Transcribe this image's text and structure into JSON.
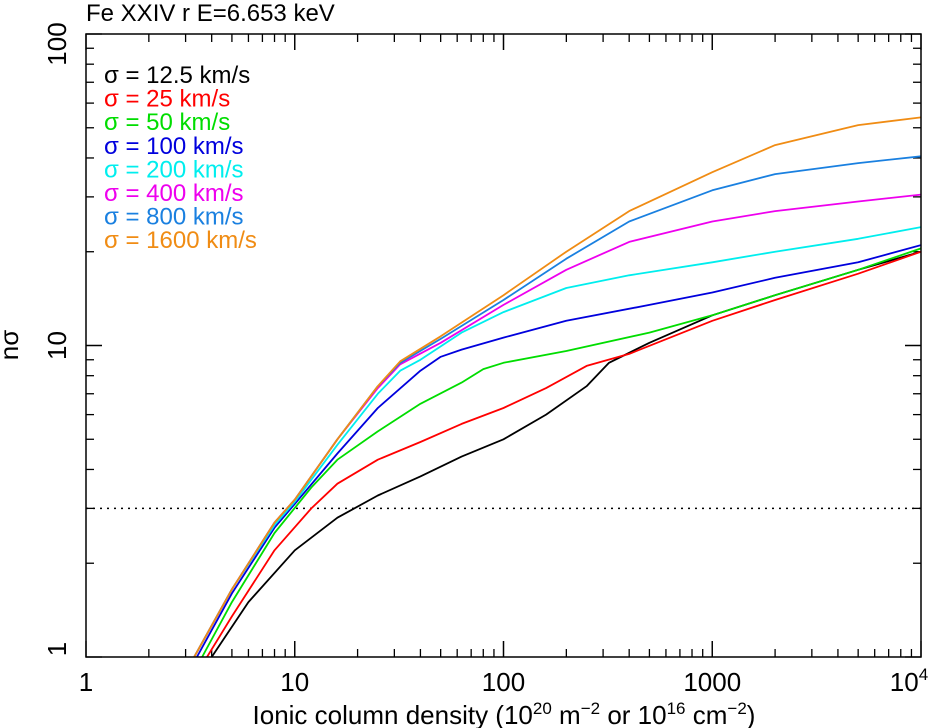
{
  "chart_data": {
    "type": "line",
    "title": "Fe XXIV r E=6.653 keV",
    "xlabel_parts": [
      "Ionic column density (10",
      "20",
      " m",
      "−2",
      " or 10",
      "16",
      " cm",
      "−2",
      ")"
    ],
    "ylabel": "nσ",
    "x_scale": "log",
    "y_scale": "log",
    "xlim": [
      1,
      10000
    ],
    "ylim": [
      1,
      100
    ],
    "x_tick_labels": [
      {
        "value": 1,
        "label": "1"
      },
      {
        "value": 10,
        "label": "10"
      },
      {
        "value": 100,
        "label": "100"
      },
      {
        "value": 1000,
        "label": "1000"
      },
      {
        "value": 10000,
        "base": "10",
        "exp": "4"
      }
    ],
    "y_tick_labels": [
      {
        "value": 1,
        "label": "1"
      },
      {
        "value": 10,
        "label": "10"
      },
      {
        "value": 100,
        "label": "100"
      }
    ],
    "reference_line": {
      "y": 3,
      "style": "dotted"
    },
    "legend_position": "top-left",
    "series": [
      {
        "name": "σ = 12.5 km/s",
        "color": "#000000",
        "points": [
          [
            4,
            1
          ],
          [
            6,
            1.5
          ],
          [
            10,
            2.2
          ],
          [
            16,
            2.8
          ],
          [
            25,
            3.3
          ],
          [
            40,
            3.8
          ],
          [
            63,
            4.4
          ],
          [
            100,
            5.0
          ],
          [
            160,
            6.0
          ],
          [
            250,
            7.4
          ],
          [
            320,
            8.8
          ],
          [
            500,
            10.2
          ],
          [
            1000,
            12.5
          ],
          [
            2000,
            14.5
          ],
          [
            5000,
            17.5
          ],
          [
            10000,
            20.0
          ]
        ]
      },
      {
        "name": "σ = 25 km/s",
        "color": "#ff0000",
        "points": [
          [
            3.8,
            1
          ],
          [
            5,
            1.35
          ],
          [
            8,
            2.2
          ],
          [
            12,
            3.0
          ],
          [
            16,
            3.6
          ],
          [
            25,
            4.3
          ],
          [
            40,
            4.9
          ],
          [
            63,
            5.6
          ],
          [
            100,
            6.3
          ],
          [
            160,
            7.3
          ],
          [
            250,
            8.6
          ],
          [
            400,
            9.4
          ],
          [
            1000,
            12.0
          ],
          [
            2000,
            14.0
          ],
          [
            5000,
            17.0
          ],
          [
            10000,
            20.0
          ]
        ]
      },
      {
        "name": "σ = 50 km/s",
        "color": "#00dd00",
        "points": [
          [
            3.6,
            1
          ],
          [
            5,
            1.5
          ],
          [
            8,
            2.5
          ],
          [
            12,
            3.5
          ],
          [
            16,
            4.3
          ],
          [
            25,
            5.3
          ],
          [
            40,
            6.5
          ],
          [
            63,
            7.6
          ],
          [
            80,
            8.4
          ],
          [
            100,
            8.8
          ],
          [
            200,
            9.6
          ],
          [
            500,
            11.0
          ],
          [
            1000,
            12.5
          ],
          [
            2000,
            14.5
          ],
          [
            5000,
            17.5
          ],
          [
            10000,
            20.5
          ]
        ]
      },
      {
        "name": "σ = 100 km/s",
        "color": "#0000dd",
        "points": [
          [
            3.4,
            1
          ],
          [
            5,
            1.6
          ],
          [
            8,
            2.6
          ],
          [
            10,
            3.1
          ],
          [
            16,
            4.5
          ],
          [
            25,
            6.3
          ],
          [
            40,
            8.3
          ],
          [
            50,
            9.2
          ],
          [
            63,
            9.7
          ],
          [
            100,
            10.6
          ],
          [
            200,
            12.0
          ],
          [
            500,
            13.5
          ],
          [
            1000,
            14.8
          ],
          [
            2000,
            16.5
          ],
          [
            5000,
            18.5
          ],
          [
            10000,
            21.0
          ]
        ]
      },
      {
        "name": "σ = 200 km/s",
        "color": "#00eeee",
        "points": [
          [
            3.3,
            1
          ],
          [
            5,
            1.65
          ],
          [
            8,
            2.65
          ],
          [
            10,
            3.15
          ],
          [
            16,
            4.8
          ],
          [
            25,
            7.0
          ],
          [
            32,
            8.3
          ],
          [
            40,
            9.0
          ],
          [
            63,
            11.0
          ],
          [
            100,
            12.8
          ],
          [
            200,
            15.3
          ],
          [
            400,
            16.8
          ],
          [
            1000,
            18.5
          ],
          [
            2000,
            20.0
          ],
          [
            5000,
            22.0
          ],
          [
            10000,
            24.0
          ]
        ]
      },
      {
        "name": "σ = 400 km/s",
        "color": "#ee00ee",
        "points": [
          [
            3.3,
            1
          ],
          [
            5,
            1.65
          ],
          [
            8,
            2.7
          ],
          [
            10,
            3.2
          ],
          [
            16,
            5.0
          ],
          [
            25,
            7.3
          ],
          [
            32,
            8.7
          ],
          [
            50,
            10.2
          ],
          [
            100,
            13.5
          ],
          [
            200,
            17.5
          ],
          [
            400,
            21.5
          ],
          [
            1000,
            25.0
          ],
          [
            2000,
            27.0
          ],
          [
            5000,
            29.0
          ],
          [
            10000,
            30.5
          ]
        ]
      },
      {
        "name": "σ = 800 km/s",
        "color": "#1a80e0",
        "points": [
          [
            3.3,
            1
          ],
          [
            5,
            1.65
          ],
          [
            8,
            2.7
          ],
          [
            10,
            3.2
          ],
          [
            16,
            5.0
          ],
          [
            25,
            7.4
          ],
          [
            32,
            8.8
          ],
          [
            50,
            10.5
          ],
          [
            100,
            14.0
          ],
          [
            200,
            19.0
          ],
          [
            400,
            25.0
          ],
          [
            1000,
            31.5
          ],
          [
            2000,
            35.5
          ],
          [
            5000,
            38.5
          ],
          [
            10000,
            40.5
          ]
        ]
      },
      {
        "name": "σ = 1600 km/s",
        "color": "#f08c14",
        "points": [
          [
            3.3,
            1
          ],
          [
            5,
            1.65
          ],
          [
            8,
            2.7
          ],
          [
            10,
            3.2
          ],
          [
            16,
            5.0
          ],
          [
            25,
            7.4
          ],
          [
            32,
            8.9
          ],
          [
            50,
            10.7
          ],
          [
            100,
            14.5
          ],
          [
            200,
            20.0
          ],
          [
            400,
            27.0
          ],
          [
            1000,
            36.0
          ],
          [
            2000,
            44.0
          ],
          [
            5000,
            51.0
          ],
          [
            10000,
            54.0
          ]
        ]
      }
    ]
  }
}
